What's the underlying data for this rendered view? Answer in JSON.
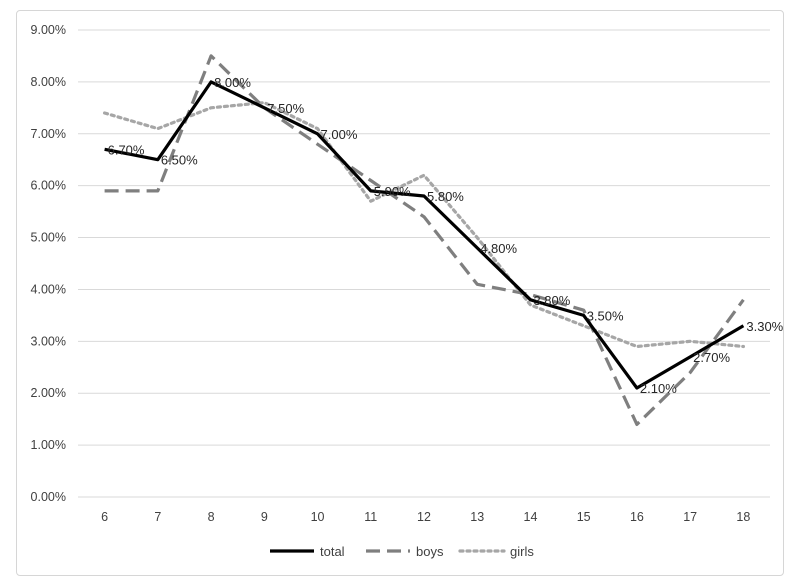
{
  "chart_data": {
    "type": "line",
    "title": "",
    "xlabel": "",
    "ylabel": "",
    "x": [
      "6",
      "7",
      "8",
      "9",
      "10",
      "11",
      "12",
      "13",
      "14",
      "15",
      "16",
      "17",
      "18"
    ],
    "ylim": [
      0,
      0.09
    ],
    "y_ticks": [
      "0.00%",
      "1.00%",
      "2.00%",
      "3.00%",
      "4.00%",
      "5.00%",
      "6.00%",
      "7.00%",
      "8.00%",
      "9.00%"
    ],
    "grid": true,
    "legend_position": "bottom",
    "series": [
      {
        "name": "total",
        "values": [
          0.067,
          0.065,
          0.08,
          0.075,
          0.07,
          0.059,
          0.058,
          0.048,
          0.038,
          0.035,
          0.021,
          0.027,
          0.033
        ],
        "labels": [
          "6.70%",
          "6.50%",
          "8.00%",
          "7.50%",
          "7.00%",
          "5.90%",
          "5.80%",
          "4.80%",
          "3.80%",
          "3.50%",
          "2.10%",
          "2.70%",
          "3.30%"
        ],
        "color": "#000000",
        "dash": "solid"
      },
      {
        "name": "boys",
        "values": [
          0.059,
          0.059,
          0.085,
          0.075,
          0.068,
          0.061,
          0.054,
          0.041,
          0.039,
          0.036,
          0.014,
          0.024,
          0.038
        ],
        "color": "#7f7f7f",
        "dash": "dashed"
      },
      {
        "name": "girls",
        "values": [
          0.074,
          0.071,
          0.075,
          0.076,
          0.071,
          0.057,
          0.062,
          0.05,
          0.037,
          0.033,
          0.029,
          0.03,
          0.029
        ],
        "color": "#a6a6a6",
        "dash": "dotted"
      }
    ]
  }
}
